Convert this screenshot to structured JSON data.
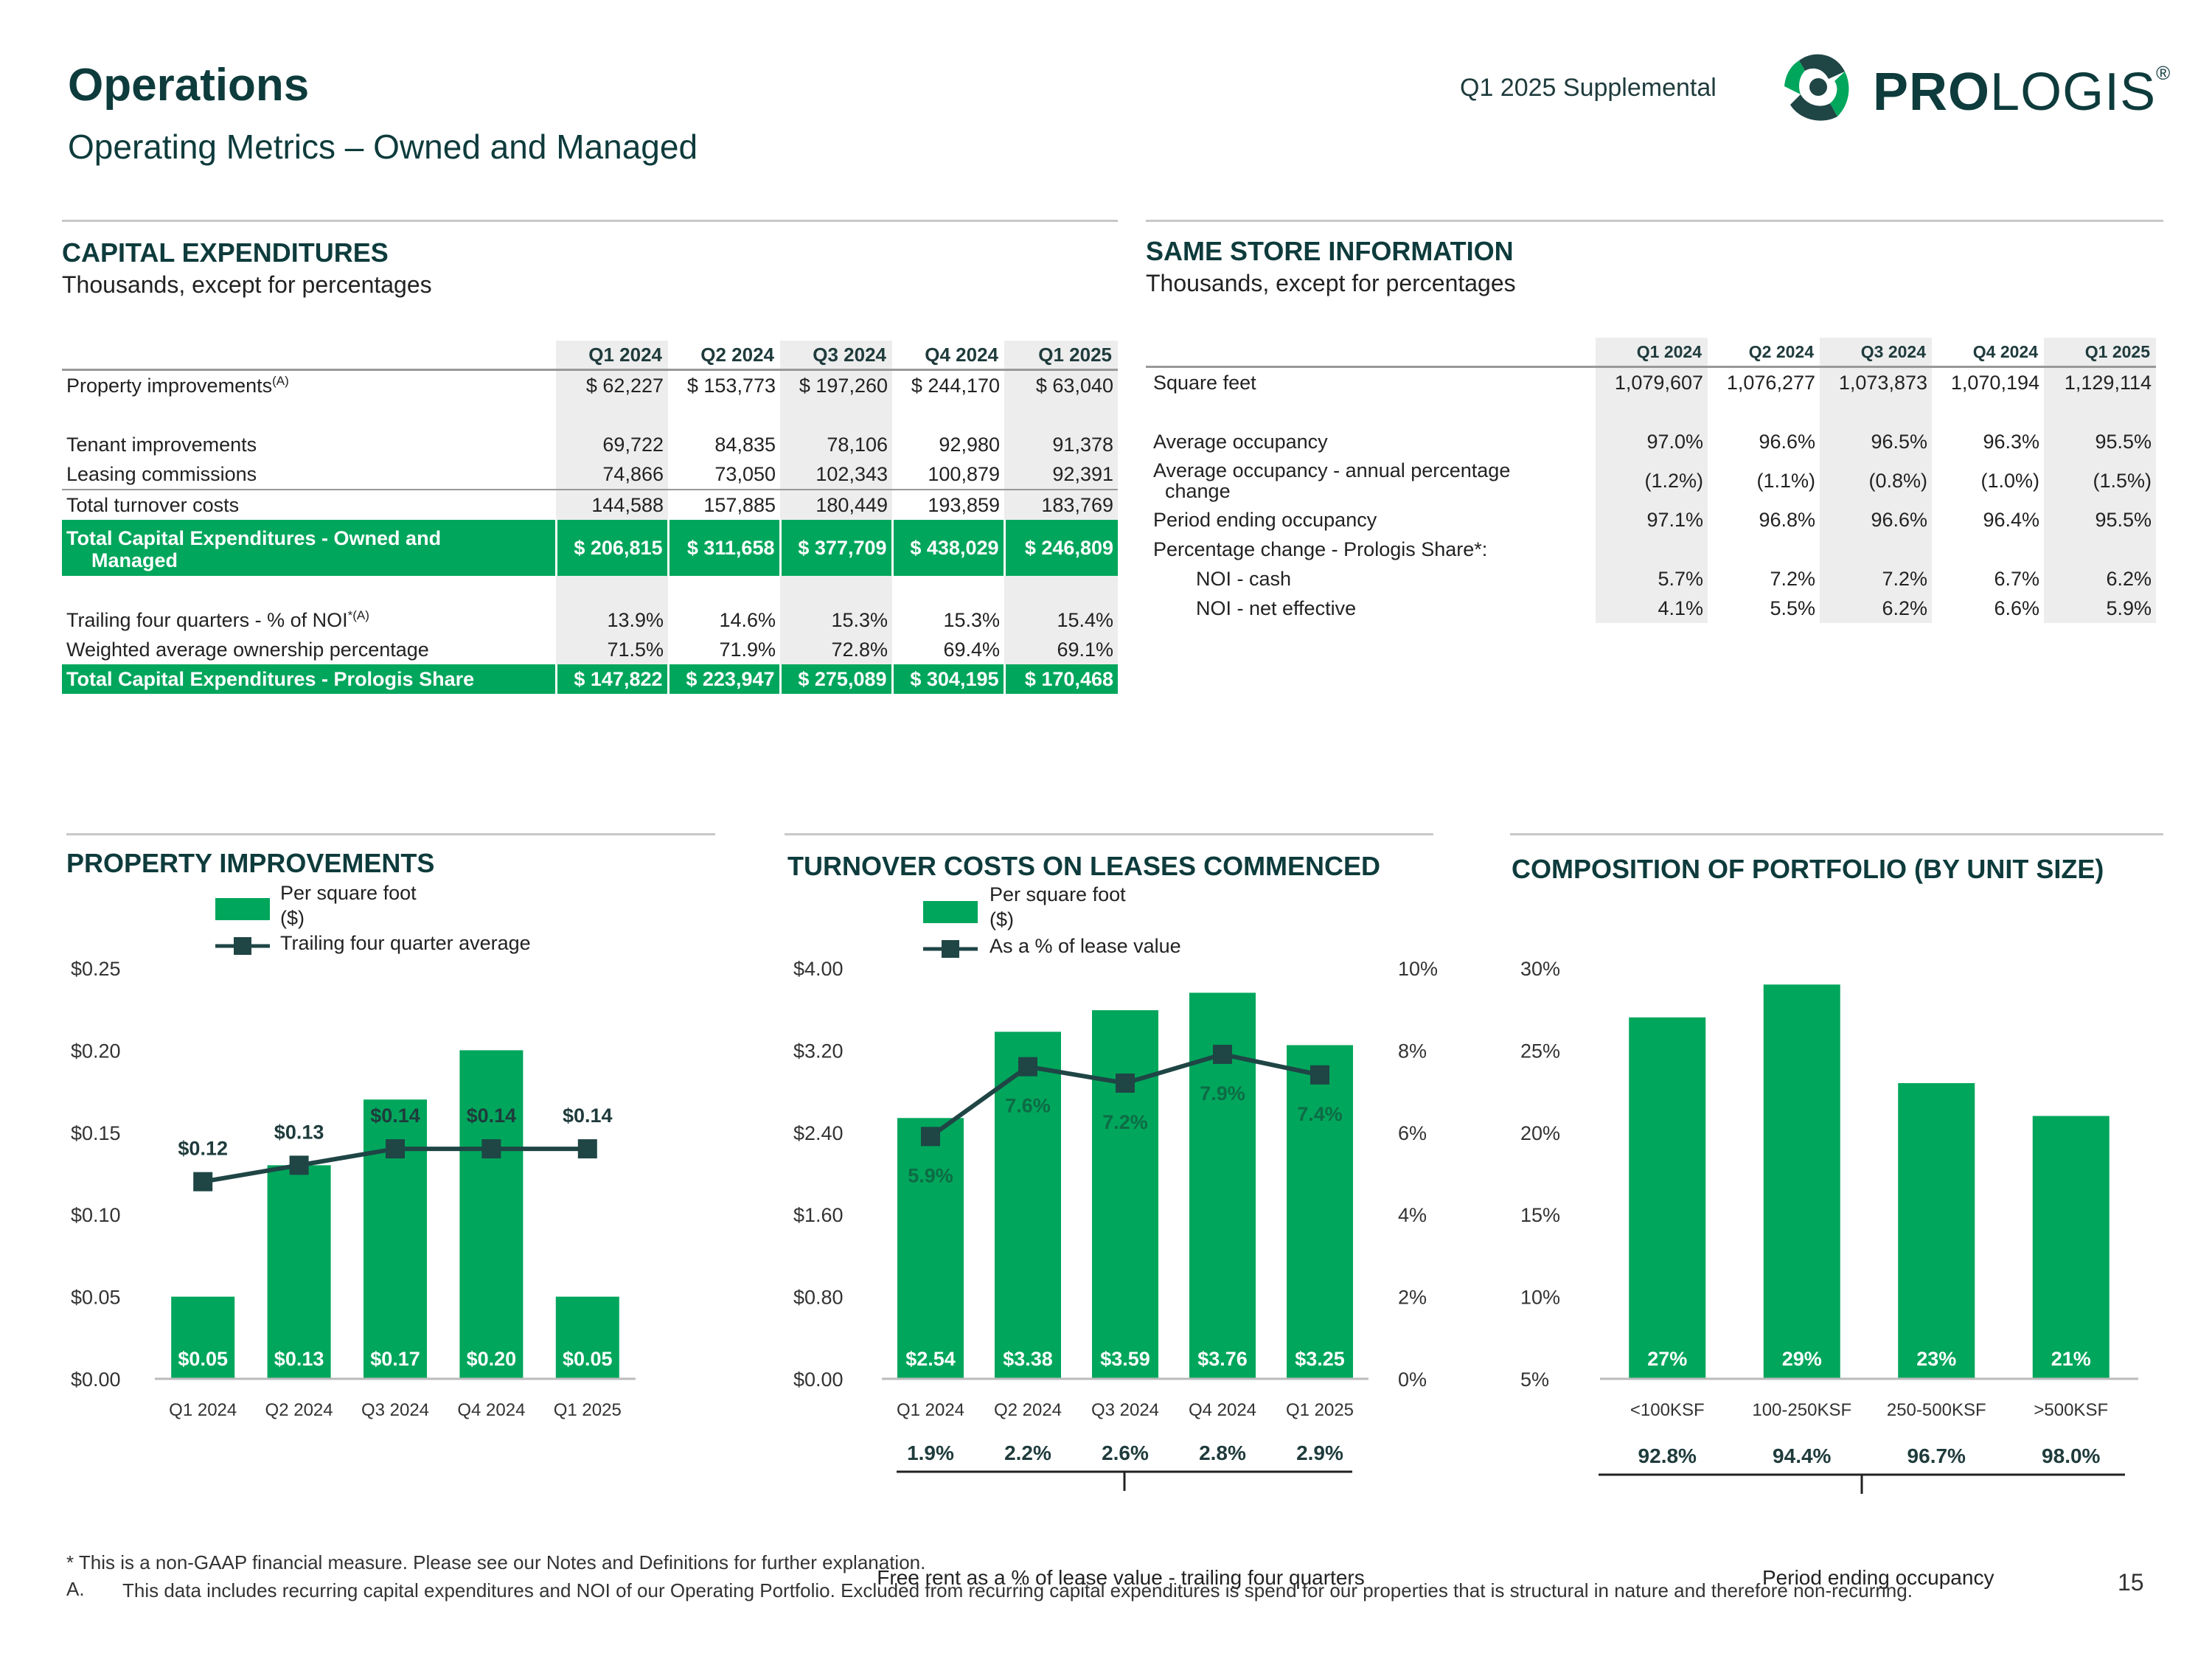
{
  "header": {
    "title": "Operations",
    "subtitle": "Operating Metrics – Owned and Managed",
    "supplemental": "Q1 2025 Supplemental",
    "logo_text_bold": "PRO",
    "logo_text_light": "LOGIS",
    "logo_mark": "®"
  },
  "capex": {
    "heading": "CAPITAL EXPENDITURES",
    "subheading": "Thousands, except for percentages",
    "columns": [
      "Q1 2024",
      "Q2 2024",
      "Q3 2024",
      "Q4 2024",
      "Q1 2025"
    ],
    "rows": {
      "property_improvements": {
        "label": "Property improvements",
        "sup": "(A)",
        "values": [
          "$   62,227",
          "$ 153,773",
          "$ 197,260",
          "$ 244,170",
          "$   63,040"
        ]
      },
      "tenant_improvements": {
        "label": "Tenant improvements",
        "values": [
          "69,722",
          "84,835",
          "78,106",
          "92,980",
          "91,378"
        ]
      },
      "leasing_commissions": {
        "label": "Leasing commissions",
        "values": [
          "74,866",
          "73,050",
          "102,343",
          "100,879",
          "92,391"
        ]
      },
      "total_turnover": {
        "label": "Total turnover costs",
        "values": [
          "144,588",
          "157,885",
          "180,449",
          "193,859",
          "183,769"
        ]
      },
      "total_owned_managed": {
        "label_line1": "Total Capital Expenditures - Owned and",
        "label_line2": "Managed",
        "values": [
          "$ 206,815",
          "$ 311,658",
          "$ 377,709",
          "$ 438,029",
          "$ 246,809"
        ]
      },
      "trailing_noi": {
        "label": "Trailing four quarters - % of NOI",
        "sup": "*(A)",
        "values": [
          "13.9%",
          "14.6%",
          "15.3%",
          "15.3%",
          "15.4%"
        ]
      },
      "weighted_ownership": {
        "label": "Weighted average ownership percentage",
        "values": [
          "71.5%",
          "71.9%",
          "72.8%",
          "69.4%",
          "69.1%"
        ]
      },
      "total_prologis_share": {
        "label": "Total Capital Expenditures - Prologis Share",
        "values": [
          "$ 147,822",
          "$ 223,947",
          "$ 275,089",
          "$ 304,195",
          "$ 170,468"
        ]
      }
    }
  },
  "same_store": {
    "heading": "SAME STORE INFORMATION",
    "subheading": "Thousands, except for percentages",
    "columns": [
      "Q1 2024",
      "Q2 2024",
      "Q3 2024",
      "Q4 2024",
      "Q1 2025"
    ],
    "rows": {
      "square_feet": {
        "label": "Square feet",
        "values": [
          "1,079,607",
          "1,076,277",
          "1,073,873",
          "1,070,194",
          "1,129,114"
        ]
      },
      "avg_occupancy": {
        "label": "Average occupancy",
        "values": [
          "97.0%",
          "96.6%",
          "96.5%",
          "96.3%",
          "95.5%"
        ]
      },
      "avg_occ_change": {
        "label_line1": "Average occupancy - annual percentage",
        "label_line2": "change",
        "values": [
          "(1.2%)",
          "(1.1%)",
          "(0.8%)",
          "(1.0%)",
          "(1.5%)"
        ]
      },
      "period_ending": {
        "label": "Period ending occupancy",
        "values": [
          "97.1%",
          "96.8%",
          "96.6%",
          "96.4%",
          "95.5%"
        ]
      },
      "pct_change_header": {
        "label": "Percentage change - Prologis Share*:"
      },
      "noi_cash": {
        "label": "NOI - cash",
        "values": [
          "5.7%",
          "7.2%",
          "7.2%",
          "6.7%",
          "6.2%"
        ]
      },
      "noi_net": {
        "label": "NOI - net effective",
        "values": [
          "4.1%",
          "5.5%",
          "6.2%",
          "6.6%",
          "5.9%"
        ]
      }
    }
  },
  "legends": {
    "per_sqft": "Per square foot",
    "per_sqft_unit": "($)",
    "trailing_avg": "Trailing four quarter average",
    "pct_lease": "As a % of lease value"
  },
  "chart_data": [
    {
      "type": "bar",
      "title": "PROPERTY IMPROVEMENTS",
      "categories": [
        "Q1 2024",
        "Q2 2024",
        "Q3 2024",
        "Q4 2024",
        "Q1 2025"
      ],
      "series": [
        {
          "name": "Per square foot ($)",
          "values": [
            0.05,
            0.13,
            0.17,
            0.2,
            0.05
          ],
          "labels": [
            "$0.05",
            "$0.13",
            "$0.17",
            "$0.20",
            "$0.05"
          ]
        },
        {
          "name": "Trailing four quarter average",
          "type": "line",
          "values": [
            0.12,
            0.13,
            0.14,
            0.14,
            0.14
          ],
          "labels": [
            "$0.12",
            "$0.13",
            "$0.14",
            "$0.14",
            "$0.14"
          ]
        }
      ],
      "ylim": [
        0,
        0.25
      ],
      "yticks": [
        "$0.00",
        "$0.05",
        "$0.10",
        "$0.15",
        "$0.20",
        "$0.25"
      ]
    },
    {
      "type": "bar",
      "title": "TURNOVER COSTS ON LEASES COMMENCED",
      "categories": [
        "Q1 2024",
        "Q2 2024",
        "Q3 2024",
        "Q4 2024",
        "Q1 2025"
      ],
      "series": [
        {
          "name": "Per square foot ($)",
          "values": [
            2.54,
            3.38,
            3.59,
            3.76,
            3.25
          ],
          "labels": [
            "$2.54",
            "$3.38",
            "$3.59",
            "$3.76",
            "$3.25"
          ]
        },
        {
          "name": "As a % of lease value",
          "type": "line",
          "axis": "right",
          "values": [
            5.9,
            7.6,
            7.2,
            7.9,
            7.4
          ],
          "labels": [
            "5.9%",
            "7.6%",
            "7.2%",
            "7.9%",
            "7.4%"
          ]
        }
      ],
      "ylim": [
        0,
        4.0
      ],
      "yticks": [
        "$0.00",
        "$0.80",
        "$1.60",
        "$2.40",
        "$3.20",
        "$4.00"
      ],
      "y2lim": [
        0,
        10
      ],
      "y2ticks": [
        "0%",
        "2%",
        "4%",
        "6%",
        "8%",
        "10%"
      ],
      "footer_values": [
        "1.9%",
        "2.2%",
        "2.6%",
        "2.8%",
        "2.9%"
      ],
      "footer_label": "Free rent as a % of lease value - trailing four quarters"
    },
    {
      "type": "bar",
      "title": "COMPOSITION OF PORTFOLIO (BY UNIT SIZE)",
      "categories": [
        "<100KSF",
        "100-250KSF",
        "250-500KSF",
        ">500KSF"
      ],
      "values": [
        27,
        29,
        23,
        21
      ],
      "labels": [
        "27%",
        "29%",
        "23%",
        "21%"
      ],
      "ylim": [
        5,
        30
      ],
      "yticks": [
        "5%",
        "10%",
        "15%",
        "20%",
        "25%",
        "30%"
      ],
      "footer_values": [
        "92.8%",
        "94.4%",
        "96.7%",
        "98.0%"
      ],
      "footer_label": "Period ending occupancy"
    }
  ],
  "footnotes": {
    "star": "* This is a non-GAAP financial measure. Please see our Notes and Definitions for further explanation.",
    "a_marker": "A.",
    "a_text": "This data includes recurring capital expenditures and NOI of our Operating Portfolio. Excluded from recurring capital expenditures is spend for our properties that is structural in nature and therefore non-recurring.",
    "page_number": "15"
  },
  "colors": {
    "green": "#00a65c",
    "dark": "#1f4545",
    "title": "#0e3b3c"
  }
}
